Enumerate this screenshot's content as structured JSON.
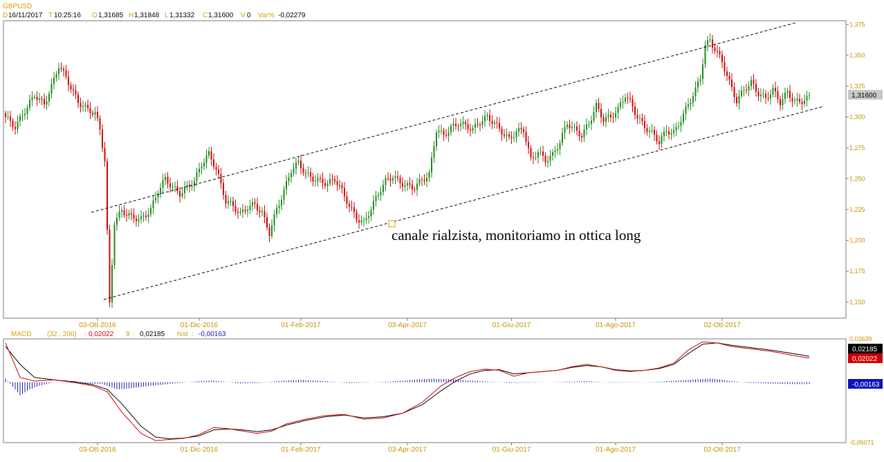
{
  "header": {
    "symbol": "GBPUSD",
    "date_key": "D",
    "date_val": "16/11/2017",
    "time_key": "T",
    "time_val": "10:25:16",
    "open_key": "O",
    "open_val": "1,31685",
    "high_key": "H",
    "high_val": "1,31848",
    "low_key": "L",
    "low_val": "1,31332",
    "close_key": "C",
    "close_val": "1,31600",
    "vol_key": "V",
    "vol_val": "0",
    "var_key": "Var%",
    "var_val": "-0,02279"
  },
  "macd_header": {
    "name": "MACD",
    "params": "(32 , 200)",
    "sep1": ":",
    "macd_val": "0,02022",
    "signal_period": "9",
    "sep2": ":",
    "signal_val": "0,02185",
    "hist_key": "hist",
    "sep3": ":",
    "hist_val": "-0,00163"
  },
  "annotation": "canale rialzista, monitoriamo in ottica long",
  "colors": {
    "up": "#1a8a1a",
    "down": "#d00000",
    "macd_line": "#d00000",
    "signal_line": "#000000",
    "hist": "#1a1aa8",
    "axis_text": "#c89000",
    "last_price_bg": "#c8c8c8"
  },
  "chart_data": [
    {
      "type": "candlestick",
      "title": "GBPUSD",
      "x_labels": [
        "03-Ott-2016",
        "01-Dic-2016",
        "01-Feb-2017",
        "03-Apr-2017",
        "01-Giu-2017",
        "01-Ago-2017",
        "02-Ott-2017"
      ],
      "y_ticks": [
        "1,375",
        "1,350",
        "1,325",
        "1,300",
        "1,275",
        "1,250",
        "1,225",
        "1,200",
        "1,175",
        "1,150"
      ],
      "ylim": [
        1.137,
        1.378
      ],
      "last_price_label": "1,31600",
      "last_price": 1.316,
      "close_path": [
        [
          0,
          1.3
        ],
        [
          4,
          1.292
        ],
        [
          8,
          1.305
        ],
        [
          12,
          1.318
        ],
        [
          16,
          1.31
        ],
        [
          20,
          1.33
        ],
        [
          22,
          1.342
        ],
        [
          25,
          1.332
        ],
        [
          28,
          1.32
        ],
        [
          30,
          1.312
        ],
        [
          34,
          1.306
        ],
        [
          37,
          1.303
        ],
        [
          39,
          1.29
        ],
        [
          41,
          1.265
        ],
        [
          43,
          1.148
        ],
        [
          45,
          1.215
        ],
        [
          48,
          1.224
        ],
        [
          52,
          1.219
        ],
        [
          56,
          1.217
        ],
        [
          60,
          1.225
        ],
        [
          63,
          1.24
        ],
        [
          66,
          1.25
        ],
        [
          69,
          1.243
        ],
        [
          72,
          1.238
        ],
        [
          75,
          1.243
        ],
        [
          78,
          1.248
        ],
        [
          81,
          1.262
        ],
        [
          84,
          1.27
        ],
        [
          87,
          1.258
        ],
        [
          89,
          1.245
        ],
        [
          91,
          1.232
        ],
        [
          94,
          1.228
        ],
        [
          97,
          1.221
        ],
        [
          100,
          1.227
        ],
        [
          103,
          1.229
        ],
        [
          106,
          1.222
        ],
        [
          109,
          1.206
        ],
        [
          112,
          1.225
        ],
        [
          115,
          1.24
        ],
        [
          118,
          1.257
        ],
        [
          121,
          1.263
        ],
        [
          124,
          1.254
        ],
        [
          127,
          1.25
        ],
        [
          130,
          1.248
        ],
        [
          133,
          1.246
        ],
        [
          136,
          1.25
        ],
        [
          139,
          1.24
        ],
        [
          142,
          1.228
        ],
        [
          145,
          1.218
        ],
        [
          148,
          1.214
        ],
        [
          151,
          1.226
        ],
        [
          154,
          1.238
        ],
        [
          157,
          1.248
        ],
        [
          160,
          1.252
        ],
        [
          163,
          1.247
        ],
        [
          166,
          1.244
        ],
        [
          169,
          1.243
        ],
        [
          172,
          1.249
        ],
        [
          175,
          1.253
        ],
        [
          178,
          1.29
        ],
        [
          181,
          1.285
        ],
        [
          184,
          1.291
        ],
        [
          187,
          1.295
        ],
        [
          190,
          1.293
        ],
        [
          193,
          1.29
        ],
        [
          196,
          1.296
        ],
        [
          199,
          1.3
        ],
        [
          202,
          1.295
        ],
        [
          205,
          1.288
        ],
        [
          208,
          1.282
        ],
        [
          211,
          1.288
        ],
        [
          214,
          1.29
        ],
        [
          217,
          1.265
        ],
        [
          220,
          1.272
        ],
        [
          223,
          1.265
        ],
        [
          226,
          1.269
        ],
        [
          229,
          1.28
        ],
        [
          232,
          1.295
        ],
        [
          235,
          1.29
        ],
        [
          238,
          1.285
        ],
        [
          241,
          1.295
        ],
        [
          244,
          1.309
        ],
        [
          247,
          1.298
        ],
        [
          250,
          1.3
        ],
        [
          253,
          1.306
        ],
        [
          256,
          1.318
        ],
        [
          258,
          1.312
        ],
        [
          261,
          1.3
        ],
        [
          264,
          1.292
        ],
        [
          267,
          1.287
        ],
        [
          270,
          1.28
        ],
        [
          273,
          1.289
        ],
        [
          276,
          1.287
        ],
        [
          279,
          1.298
        ],
        [
          282,
          1.31
        ],
        [
          285,
          1.322
        ],
        [
          287,
          1.332
        ],
        [
          289,
          1.358
        ],
        [
          291,
          1.362
        ],
        [
          293,
          1.355
        ],
        [
          296,
          1.345
        ],
        [
          299,
          1.328
        ],
        [
          302,
          1.313
        ],
        [
          305,
          1.322
        ],
        [
          308,
          1.328
        ],
        [
          311,
          1.319
        ],
        [
          314,
          1.315
        ],
        [
          317,
          1.322
        ],
        [
          320,
          1.312
        ],
        [
          323,
          1.32
        ],
        [
          326,
          1.312
        ],
        [
          329,
          1.313
        ],
        [
          332,
          1.316
        ]
      ]
    },
    {
      "type": "macd",
      "params": "(32 , 200)",
      "y_ticks": [
        "0,03639",
        "-0,05071"
      ],
      "ylim": [
        -0.05071,
        0.03639
      ],
      "value_labels": [
        {
          "text": "0,02185",
          "value": 0.02185,
          "series": "signal"
        },
        {
          "text": "0,02022",
          "value": 0.02022,
          "series": "macd"
        },
        {
          "text": "-0,00163",
          "value": -0.00163,
          "series": "hist"
        }
      ],
      "macd": [
        [
          0,
          0.033
        ],
        [
          6,
          0.004
        ],
        [
          12,
          0.001
        ],
        [
          20,
          0.002
        ],
        [
          28,
          0.0
        ],
        [
          36,
          -0.003
        ],
        [
          42,
          -0.008
        ],
        [
          48,
          -0.025
        ],
        [
          56,
          -0.043
        ],
        [
          62,
          -0.049
        ],
        [
          68,
          -0.048
        ],
        [
          74,
          -0.047
        ],
        [
          80,
          -0.044
        ],
        [
          86,
          -0.038
        ],
        [
          92,
          -0.039
        ],
        [
          98,
          -0.041
        ],
        [
          104,
          -0.043
        ],
        [
          110,
          -0.041
        ],
        [
          116,
          -0.035
        ],
        [
          124,
          -0.031
        ],
        [
          132,
          -0.028
        ],
        [
          140,
          -0.027
        ],
        [
          148,
          -0.031
        ],
        [
          156,
          -0.03
        ],
        [
          164,
          -0.026
        ],
        [
          172,
          -0.017
        ],
        [
          180,
          -0.003
        ],
        [
          186,
          0.004
        ],
        [
          192,
          0.009
        ],
        [
          198,
          0.011
        ],
        [
          204,
          0.01
        ],
        [
          210,
          0.005
        ],
        [
          216,
          0.008
        ],
        [
          222,
          0.009
        ],
        [
          228,
          0.01
        ],
        [
          234,
          0.013
        ],
        [
          240,
          0.015
        ],
        [
          246,
          0.013
        ],
        [
          252,
          0.01
        ],
        [
          258,
          0.009
        ],
        [
          264,
          0.01
        ],
        [
          270,
          0.012
        ],
        [
          276,
          0.016
        ],
        [
          282,
          0.027
        ],
        [
          288,
          0.034
        ],
        [
          294,
          0.033
        ],
        [
          300,
          0.03
        ],
        [
          308,
          0.028
        ],
        [
          316,
          0.026
        ],
        [
          324,
          0.023
        ],
        [
          332,
          0.0202
        ]
      ],
      "signal": [
        [
          0,
          0.03
        ],
        [
          6,
          0.015
        ],
        [
          12,
          0.004
        ],
        [
          20,
          0.002
        ],
        [
          28,
          0.0005
        ],
        [
          36,
          -0.002
        ],
        [
          42,
          -0.006
        ],
        [
          48,
          -0.018
        ],
        [
          56,
          -0.037
        ],
        [
          62,
          -0.046
        ],
        [
          68,
          -0.0475
        ],
        [
          74,
          -0.0468
        ],
        [
          80,
          -0.045
        ],
        [
          86,
          -0.04
        ],
        [
          92,
          -0.0392
        ],
        [
          98,
          -0.04
        ],
        [
          104,
          -0.0415
        ],
        [
          110,
          -0.04
        ],
        [
          116,
          -0.036
        ],
        [
          124,
          -0.032
        ],
        [
          132,
          -0.029
        ],
        [
          140,
          -0.0275
        ],
        [
          148,
          -0.03
        ],
        [
          156,
          -0.029
        ],
        [
          164,
          -0.026
        ],
        [
          172,
          -0.019
        ],
        [
          180,
          -0.007
        ],
        [
          186,
          0.001
        ],
        [
          192,
          0.007
        ],
        [
          198,
          0.01
        ],
        [
          204,
          0.0105
        ],
        [
          210,
          0.007
        ],
        [
          216,
          0.008
        ],
        [
          222,
          0.009
        ],
        [
          228,
          0.01
        ],
        [
          234,
          0.0125
        ],
        [
          240,
          0.014
        ],
        [
          246,
          0.013
        ],
        [
          252,
          0.0105
        ],
        [
          258,
          0.0095
        ],
        [
          264,
          0.01
        ],
        [
          270,
          0.0115
        ],
        [
          276,
          0.015
        ],
        [
          282,
          0.024
        ],
        [
          288,
          0.032
        ],
        [
          294,
          0.033
        ],
        [
          300,
          0.031
        ],
        [
          308,
          0.029
        ],
        [
          316,
          0.027
        ],
        [
          324,
          0.0245
        ],
        [
          332,
          0.0218
        ]
      ],
      "hist": [
        [
          0,
          0.003
        ],
        [
          4,
          -0.006
        ],
        [
          6,
          -0.011
        ],
        [
          10,
          -0.006
        ],
        [
          14,
          -0.003
        ],
        [
          20,
          0.0
        ],
        [
          30,
          -0.001
        ],
        [
          40,
          -0.0015
        ],
        [
          46,
          -0.006
        ],
        [
          52,
          -0.005
        ],
        [
          60,
          -0.003
        ],
        [
          70,
          -0.001
        ],
        [
          80,
          0.001
        ],
        [
          86,
          0.0015
        ],
        [
          96,
          -0.001
        ],
        [
          104,
          -0.0008
        ],
        [
          112,
          0.001
        ],
        [
          122,
          0.002
        ],
        [
          132,
          0.001
        ],
        [
          142,
          -0.0008
        ],
        [
          152,
          0.0
        ],
        [
          160,
          0.0008
        ],
        [
          168,
          0.002
        ],
        [
          176,
          0.003
        ],
        [
          184,
          0.0025
        ],
        [
          192,
          0.0015
        ],
        [
          200,
          0.0005
        ],
        [
          208,
          -0.0006
        ],
        [
          216,
          -0.0004
        ],
        [
          224,
          0.0
        ],
        [
          232,
          0.0005
        ],
        [
          240,
          0.001
        ],
        [
          250,
          -0.0004
        ],
        [
          260,
          -0.0002
        ],
        [
          270,
          0.0005
        ],
        [
          278,
          0.0015
        ],
        [
          286,
          0.0025
        ],
        [
          292,
          0.003
        ],
        [
          298,
          0.0015
        ],
        [
          306,
          -0.0005
        ],
        [
          316,
          -0.0012
        ],
        [
          324,
          -0.0015
        ],
        [
          332,
          -0.0016
        ]
      ]
    }
  ]
}
